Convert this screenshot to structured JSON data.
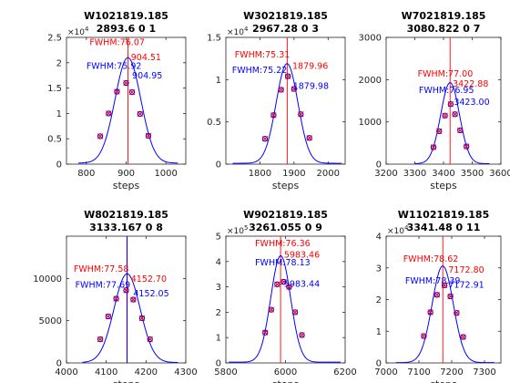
{
  "colors": {
    "fit_line": "#0000ff",
    "marker_x": "#ff0000",
    "marker_o": "#0000ff",
    "center_line": "#ff0000",
    "center_line_blue": "#0000ff",
    "label_red": "#ff0000",
    "label_blue": "#0000ff",
    "axis": "#262626"
  },
  "chart_data": [
    {
      "type": "scatter",
      "title_line1": "W1021819.185",
      "title_line2": "2893.6 0 1",
      "xlabel": "steps",
      "xlim": [
        750,
        1050
      ],
      "ylim": [
        0,
        25000
      ],
      "x_ticks": [
        800,
        900,
        1000
      ],
      "y_ticks": [
        0,
        5000,
        10000,
        15000,
        20000,
        25000
      ],
      "y_tick_labels": [
        "0",
        "0.5",
        "1",
        "1.5",
        "2",
        "2.5"
      ],
      "y_exponent": "×10",
      "y_exponent_power": "4",
      "fit": {
        "center": 904.5,
        "peak": 20800,
        "sigma": 32.4,
        "baseline": 200,
        "scan_start": 780,
        "scan_end": 1030
      },
      "points_x": [
        835,
        856,
        877,
        900,
        915,
        935,
        956
      ],
      "points_y": [
        5500,
        10000,
        14300,
        16000,
        14200,
        9900,
        5600
      ],
      "annotations": [
        {
          "text": "FWHM:76.07",
          "color": "red",
          "x": 808,
          "y": 23500
        },
        {
          "text": "904.51",
          "color": "red",
          "x": 912,
          "y": 20500
        },
        {
          "text": "FWHM:75.92",
          "color": "blue",
          "x": 800,
          "y": 18800
        },
        {
          "text": "904.95",
          "color": "blue",
          "x": 915,
          "y": 16900
        }
      ],
      "center_lines": [
        904.51
      ]
    },
    {
      "type": "scatter",
      "title_line1": "W3021819.185",
      "title_line2": "2967.28 0 3",
      "xlabel": "steps",
      "xlim": [
        1700,
        2050
      ],
      "ylim": [
        0,
        15000
      ],
      "x_ticks": [
        1800,
        1900,
        2000
      ],
      "y_ticks": [
        0,
        5000,
        10000,
        15000
      ],
      "y_tick_labels": [
        "0",
        "0.5",
        "1",
        "1.5"
      ],
      "y_exponent": "×10",
      "y_exponent_power": "4",
      "fit": {
        "center": 1879.5,
        "peak": 11800,
        "sigma": 32,
        "baseline": 100,
        "scan_start": 1720,
        "scan_end": 2040
      },
      "points_x": [
        1815,
        1840,
        1862,
        1882,
        1900,
        1920,
        1945
      ],
      "points_y": [
        3000,
        5800,
        8800,
        10400,
        8900,
        5900,
        3100
      ],
      "annotations": [
        {
          "text": "FWHM:75.31",
          "color": "red",
          "x": 1726,
          "y": 12600
        },
        {
          "text": "1879.96",
          "color": "red",
          "x": 1895,
          "y": 11300
        },
        {
          "text": "FWHM:75.22",
          "color": "blue",
          "x": 1718,
          "y": 10800
        },
        {
          "text": "1879.98",
          "color": "blue",
          "x": 1897,
          "y": 8900
        }
      ],
      "center_lines": [
        1879.96
      ]
    },
    {
      "type": "scatter",
      "title_line1": "W7021819.185",
      "title_line2": "3080.822 0 7",
      "xlabel": "steps",
      "xlim": [
        3200,
        3600
      ],
      "ylim": [
        0,
        3000
      ],
      "x_ticks": [
        3200,
        3300,
        3400,
        3500,
        3600
      ],
      "y_ticks": [
        0,
        1000,
        2000,
        3000
      ],
      "y_tick_labels": [
        "0",
        "1000",
        "2000",
        "3000"
      ],
      "y_exponent": "",
      "y_exponent_power": "",
      "fit": {
        "center": 3422.9,
        "peak": 1920,
        "sigma": 32.7,
        "baseline": 10,
        "scan_start": 3300,
        "scan_end": 3560
      },
      "points_x": [
        3365,
        3385,
        3405,
        3425,
        3440,
        3458,
        3480
      ],
      "points_y": [
        400,
        780,
        1150,
        1420,
        1180,
        800,
        420
      ],
      "annotations": [
        {
          "text": "FWHM:77.00",
          "color": "red",
          "x": 3310,
          "y": 2070
        },
        {
          "text": "3422.88",
          "color": "red",
          "x": 3432,
          "y": 1830
        },
        {
          "text": "FWHM:76.95",
          "color": "blue",
          "x": 3314,
          "y": 1680
        },
        {
          "text": "3423.00",
          "color": "blue",
          "x": 3436,
          "y": 1400
        }
      ],
      "center_lines": [
        3422.88
      ]
    },
    {
      "type": "scatter",
      "title_line1": "W8021819.185",
      "title_line2": "3133.167 0 8",
      "xlabel": "steps",
      "xlim": [
        4000,
        4300
      ],
      "ylim": [
        0,
        15000
      ],
      "x_ticks": [
        4000,
        4100,
        4200,
        4300
      ],
      "y_ticks": [
        0,
        5000,
        10000
      ],
      "y_tick_labels": [
        "0",
        "5000",
        "10000"
      ],
      "y_exponent": "",
      "y_exponent_power": "",
      "fit": {
        "center": 4152.4,
        "peak": 10500,
        "sigma": 32.9,
        "baseline": 50,
        "scan_start": 4040,
        "scan_end": 4280
      },
      "points_x": [
        4085,
        4105,
        4125,
        4150,
        4168,
        4190,
        4210
      ],
      "points_y": [
        2800,
        5500,
        7600,
        8600,
        7500,
        5300,
        2800
      ],
      "annotations": [
        {
          "text": "FWHM:77.58",
          "color": "red",
          "x": 4018,
          "y": 10800
        },
        {
          "text": "4152.70",
          "color": "red",
          "x": 4162,
          "y": 9600
        },
        {
          "text": "FWHM:77.69",
          "color": "blue",
          "x": 4022,
          "y": 8900
        },
        {
          "text": "4152.05",
          "color": "blue",
          "x": 4168,
          "y": 7900
        }
      ],
      "center_lines": [
        4152.7,
        4152.05
      ]
    },
    {
      "type": "scatter",
      "title_line1": "W9021819.185",
      "title_line2": "3261.055 0 9",
      "xlabel": "steps",
      "xlim": [
        5800,
        6200
      ],
      "ylim": [
        0,
        500000
      ],
      "x_ticks": [
        5800,
        6000,
        6200
      ],
      "y_ticks": [
        0,
        100000,
        200000,
        300000,
        400000,
        500000
      ],
      "y_tick_labels": [
        "0",
        "1",
        "2",
        "3",
        "4",
        "5"
      ],
      "y_exponent": "×10",
      "y_exponent_power": "5",
      "fit": {
        "center": 5983.8,
        "peak": 420000,
        "sigma": 33.2,
        "baseline": 3000,
        "scan_start": 5810,
        "scan_end": 6185
      },
      "points_x": [
        5932,
        5952,
        5972,
        5994,
        6012,
        6032,
        6055
      ],
      "points_y": [
        120000,
        210000,
        310000,
        320000,
        300000,
        200000,
        110000
      ],
      "annotations": [
        {
          "text": "FWHM:76.36",
          "color": "red",
          "x": 5898,
          "y": 460000
        },
        {
          "text": "5983.46",
          "color": "red",
          "x": 5995,
          "y": 415000
        },
        {
          "text": "FWHM:78.13",
          "color": "blue",
          "x": 5898,
          "y": 385000
        },
        {
          "text": "5983.44",
          "color": "blue",
          "x": 5995,
          "y": 300000
        }
      ],
      "center_lines": [
        5983.46
      ]
    },
    {
      "type": "scatter",
      "title_line1": "W11021819.185",
      "title_line2": "3341.48 0 11",
      "xlabel": "steps",
      "xlim": [
        7000,
        7350
      ],
      "ylim": [
        0,
        40000
      ],
      "x_ticks": [
        7000,
        7100,
        7200,
        7300
      ],
      "y_ticks": [
        0,
        10000,
        20000,
        30000,
        40000
      ],
      "y_tick_labels": [
        "0",
        "1",
        "2",
        "3",
        "4"
      ],
      "y_exponent": "×10",
      "y_exponent_power": "4",
      "fit": {
        "center": 7172.6,
        "peak": 30500,
        "sigma": 32.3,
        "baseline": 100,
        "scan_start": 7030,
        "scan_end": 7330
      },
      "points_x": [
        7115,
        7135,
        7155,
        7178,
        7196,
        7215,
        7235
      ],
      "points_y": [
        8500,
        16000,
        21500,
        24500,
        21000,
        15800,
        8200
      ],
      "annotations": [
        {
          "text": "FWHM:78.62",
          "color": "red",
          "x": 7052,
          "y": 32000
        },
        {
          "text": "7172.80",
          "color": "red",
          "x": 7190,
          "y": 28500
        },
        {
          "text": "FWHM:78.39",
          "color": "blue",
          "x": 7058,
          "y": 25000
        },
        {
          "text": "7172.91",
          "color": "blue",
          "x": 7190,
          "y": 23700
        }
      ],
      "center_lines": [
        7172.8
      ]
    }
  ]
}
